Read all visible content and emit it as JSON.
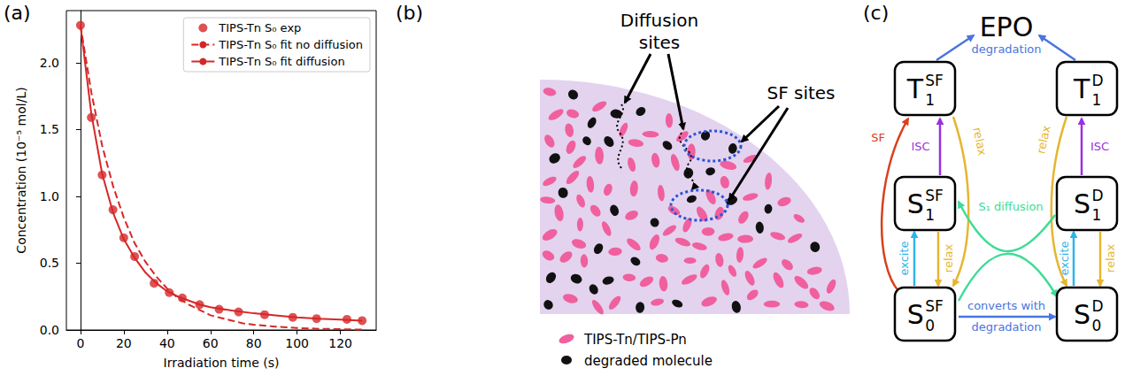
{
  "chart_data": {
    "type": "line",
    "panel_label": "(a)",
    "x_label": "Irradiation time (s)",
    "y_label": "Concentration (10⁻⁵ mol/L)",
    "xlim": [
      -6.5,
      136.5
    ],
    "xticks": [
      0,
      20,
      40,
      60,
      80,
      100,
      120
    ],
    "ylim": [
      0,
      2.39
    ],
    "yticks": [
      {
        "value": 0,
        "label": "0.0"
      },
      {
        "value": 0.5,
        "label": "0.5"
      },
      {
        "value": 1,
        "label": "1.0"
      },
      {
        "value": 1.5,
        "label": "1.5"
      },
      {
        "value": 2,
        "label": "2.0"
      }
    ],
    "grid": false,
    "legend": "upper right",
    "series": [
      {
        "name": "TIPS-Tn S₀ exp",
        "type": "scatter",
        "marker": "circle",
        "color": "#d62728",
        "x": [
          0,
          5,
          10,
          15,
          20,
          25,
          34,
          41,
          47,
          55,
          64,
          73,
          85,
          98,
          109,
          123,
          130
        ],
        "values": [
          2.28,
          1.59,
          1.16,
          0.9,
          0.69,
          0.55,
          0.35,
          0.28,
          0.24,
          0.19,
          0.155,
          0.135,
          0.115,
          0.095,
          0.085,
          0.08,
          0.07
        ]
      },
      {
        "name": "TIPS-Tn S₀ fit no diffusion",
        "type": "line",
        "line_style": "dashed",
        "color": "#d62728",
        "x": [
          0,
          5,
          10,
          15,
          20,
          25,
          30,
          35,
          40,
          45,
          50,
          55,
          60,
          65,
          70,
          75,
          80,
          90,
          100,
          110,
          120,
          130
        ],
        "values": [
          2.28,
          1.78,
          1.38,
          1.08,
          0.84,
          0.65,
          0.51,
          0.4,
          0.31,
          0.24,
          0.19,
          0.15,
          0.11,
          0.09,
          0.07,
          0.05,
          0.04,
          0.025,
          0.015,
          0.009,
          0.006,
          0.003
        ]
      },
      {
        "name": "TIPS-Tn S₀ fit diffusion",
        "type": "line",
        "line_style": "solid",
        "color": "#d62728",
        "x": [
          0,
          5,
          10,
          15,
          20,
          25,
          30,
          35,
          40,
          45,
          50,
          55,
          60,
          70,
          80,
          90,
          100,
          110,
          120,
          130
        ],
        "values": [
          2.28,
          1.62,
          1.17,
          0.88,
          0.68,
          0.54,
          0.43,
          0.35,
          0.29,
          0.25,
          0.22,
          0.19,
          0.17,
          0.145,
          0.125,
          0.11,
          0.095,
          0.085,
          0.078,
          0.07
        ]
      }
    ]
  },
  "panel_b": {
    "label": "(b)",
    "callouts": [
      {
        "text": "Diffusion sites"
      },
      {
        "text": "SF sites"
      }
    ],
    "legend": [
      {
        "label": "TIPS-Tn/TIPS-Pn",
        "color": "#f0609e"
      },
      {
        "label": "degraded molecule",
        "color": "#111111"
      }
    ]
  },
  "panel_c": {
    "label": "(c)",
    "nodes": [
      {
        "symbol": "EPO",
        "caption": "degradation"
      },
      {
        "symbol": "T",
        "sup": "SF",
        "sub": "1"
      },
      {
        "symbol": "T",
        "sup": "D",
        "sub": "1"
      },
      {
        "symbol": "S",
        "sup": "SF",
        "sub": "1"
      },
      {
        "symbol": "S",
        "sup": "D",
        "sub": "1"
      },
      {
        "symbol": "S",
        "sup": "SF",
        "sub": "0"
      },
      {
        "symbol": "S",
        "sup": "D",
        "sub": "0"
      }
    ],
    "edges": [
      {
        "from": 1,
        "to": 0,
        "color": "#4a74e0"
      },
      {
        "from": 2,
        "to": 0,
        "color": "#4a74e0"
      },
      {
        "from": 5,
        "to": 1,
        "label": "SF",
        "color": "#d9401b"
      },
      {
        "from": 3,
        "to": 1,
        "label": "ISC",
        "color": "#9b30e0"
      },
      {
        "from": 1,
        "to": 5,
        "label": "relax",
        "color": "#e6b630"
      },
      {
        "from": 5,
        "to": 3,
        "label": "excite",
        "color": "#2db4e8"
      },
      {
        "from": 3,
        "to": 5,
        "label": "relax",
        "color": "#e6b630"
      },
      {
        "from": 4,
        "to": 2,
        "label": "ISC",
        "color": "#9b30e0"
      },
      {
        "from": 2,
        "to": 6,
        "label": "relax",
        "color": "#e6b630"
      },
      {
        "from": 6,
        "to": 4,
        "label": "excite",
        "color": "#2db4e8"
      },
      {
        "from": 4,
        "to": 6,
        "label": "relax",
        "color": "#e6b630"
      },
      {
        "from": 4,
        "to": 3,
        "label": "S₁ diffusion",
        "color": "#3ddc97"
      },
      {
        "from": 5,
        "to": 6,
        "color": "#3ddc97"
      },
      {
        "from": 5,
        "to": 6,
        "label": "converts with degradation",
        "color": "#4a74e0"
      }
    ]
  }
}
